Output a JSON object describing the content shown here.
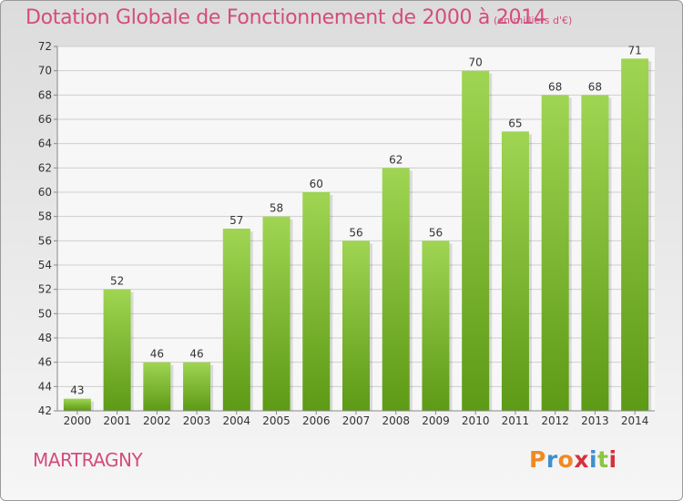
{
  "header": {
    "title": "Dotation Globale de Fonctionnement de 2000 à 2014",
    "unit": "(en milliers d'€)"
  },
  "footer": {
    "commune": "MARTRAGNY",
    "brand_letters": [
      "P",
      "r",
      "o",
      "x",
      "i",
      "t",
      "i"
    ],
    "brand_colors": [
      "#f08a24",
      "#3f8fd0",
      "#f08a24",
      "#d6313c",
      "#3f8fd0",
      "#8cc63f",
      "#d6313c"
    ]
  },
  "colors": {
    "bar_top": "#9fd552",
    "bar_bottom": "#5d9a15",
    "text_accent": "#d44c7d",
    "grid": "#cfcfcf",
    "axis": "#888888"
  },
  "chart_data": {
    "type": "bar",
    "categories": [
      "2000",
      "2001",
      "2002",
      "2003",
      "2004",
      "2005",
      "2006",
      "2007",
      "2008",
      "2009",
      "2010",
      "2011",
      "2012",
      "2013",
      "2014"
    ],
    "values": [
      43,
      52,
      46,
      46,
      57,
      58,
      60,
      56,
      62,
      56,
      70,
      65,
      68,
      68,
      71
    ],
    "ylim": [
      42,
      72
    ],
    "yticks": [
      42,
      44,
      46,
      48,
      50,
      52,
      54,
      56,
      58,
      60,
      62,
      64,
      66,
      68,
      70,
      72
    ],
    "grid": true
  }
}
